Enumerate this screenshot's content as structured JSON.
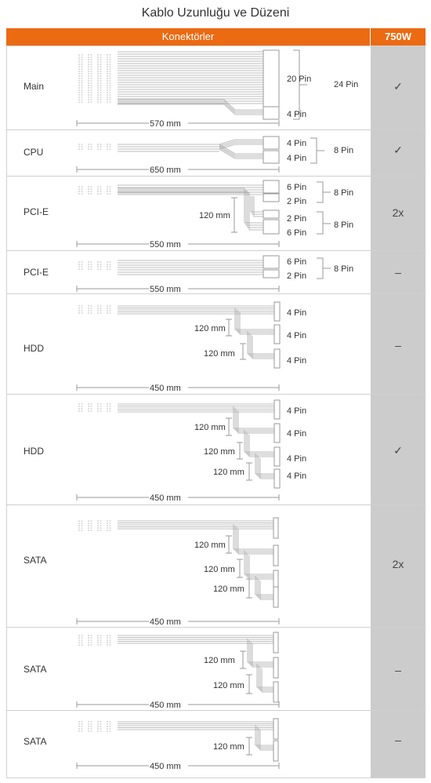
{
  "title": "Kablo Uzunluğu ve Düzeni",
  "header": {
    "connectors": "Konektörler",
    "model": "750W"
  },
  "rows": [
    {
      "name": "Main",
      "value": "✓",
      "length": "570 mm"
    },
    {
      "name": "CPU",
      "value": "✓",
      "length": "650 mm"
    },
    {
      "name": "PCI-E",
      "value": "2x",
      "length": "550 mm"
    },
    {
      "name": "PCI-E",
      "value": "–",
      "length": "550 mm"
    },
    {
      "name": "HDD",
      "value": "–",
      "length": "450 mm"
    },
    {
      "name": "HDD",
      "value": "✓",
      "length": "450 mm"
    },
    {
      "name": "SATA",
      "value": "2x",
      "length": "450 mm"
    },
    {
      "name": "SATA",
      "value": "–",
      "length": "450 mm"
    },
    {
      "name": "SATA",
      "value": "–",
      "length": "450 mm"
    }
  ],
  "labels": {
    "pin20": "20 Pin",
    "pin24": "24 Pin",
    "pin4": "4 Pin",
    "pin8": "8 Pin",
    "pin6": "6 Pin",
    "pin2": "2 Pin",
    "mm120": "120 mm"
  }
}
